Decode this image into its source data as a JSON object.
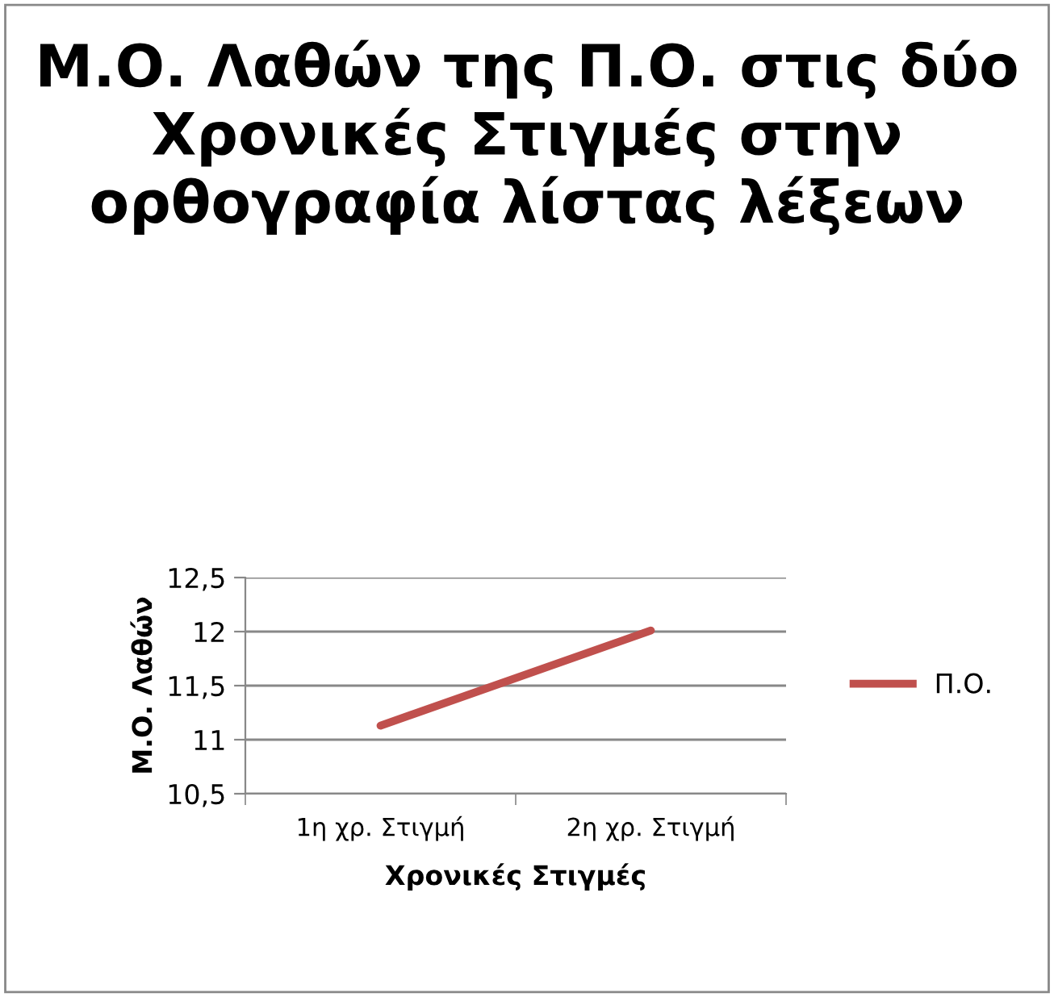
{
  "chart_data": {
    "type": "line",
    "title": "Μ.Ο. Λαθών της Π.Ο. στις δύο Χρονικές Στιγμές στην ορθογραφία λίστας λέξεων",
    "xlabel": "Χρονικές Στιγμές",
    "ylabel": "Μ.Ο. Λαθών",
    "categories": [
      "1η χρ. Στιγμή",
      "2η χρ. Στιγμή"
    ],
    "series": [
      {
        "name": "Π.Ο.",
        "color": "#c0504d",
        "values": [
          11.13,
          12.01
        ]
      }
    ],
    "ylim": [
      10.5,
      12.5
    ],
    "yticks": [
      {
        "value": 10.5,
        "label": "10,5"
      },
      11,
      {
        "value": 11.5,
        "label": "11,5"
      },
      12,
      {
        "value": 12.5,
        "label": "12,5"
      }
    ],
    "grid": "y",
    "legend": "right"
  }
}
